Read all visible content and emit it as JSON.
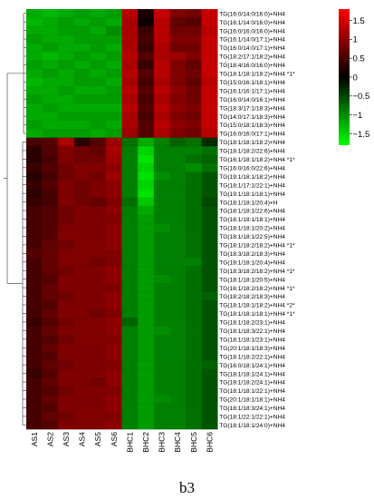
{
  "caption": "b3",
  "chart_data": {
    "type": "heatmap",
    "columns": [
      "AS1",
      "AS2",
      "AS3",
      "AS4",
      "AS5",
      "AS6",
      "BHC1",
      "BHC2",
      "BHC3",
      "BHC4",
      "BHC5",
      "BHC6"
    ],
    "rows": [
      "TG(16:0/14:0/16:0)+NH4",
      "TG(16:1/14:0/16:0)+NH4",
      "TG(16:0/16:0/16:0)+NH4",
      "TG(16:1/14:0/17:1)+NH4",
      "TG(16:0/14:0/17:1)+NH4",
      "TG(18:2/17:1/18:2)+NH4",
      "TG(18:4/16:0/16:0)+NH4",
      "TG(18:1/18:1/18:2)+NH4 *1*",
      "TG(15:0/16:1/18:1)+NH4",
      "TG(16:1/16:1/17:1)+NH4",
      "TG(16:0/14:0/16:1)+NH4",
      "TG(18:3/17:1/18:3)+NH4",
      "TG(14:0/17:1/18:3)+NH4",
      "TG(15:0/18:1/18:3)+NH4",
      "TG(16:0/16:0/17:1)+NH4",
      "TG(18:1/18:1/18:2)+NH4",
      "TG(18:1/18:2/22:6)+NH4",
      "TG(16:1/18:1/18:2)+NH4 *1*",
      "TG(16:0/16:0/22:6)+NH4",
      "TG(19:1/18:1/18:2)+NH4",
      "TG(18:1/17:1/22:1)+NH4",
      "TG(19:1/18:1/18:1)+NH4",
      "TG(18:1/18:1/20:4)+H",
      "TG(18:1/18:1/22:6)+NH4",
      "TG(16:1/18:1/18:1)+NH4",
      "TG(18:1/18:1/20:2)+NH4",
      "TG(18:1/18:1/22:5)+NH4",
      "TG(18:1/18:2/18:2)+NH4 *1*",
      "TG(18:3/18:2/18:3)+NH4",
      "TG(18:1/18:1/20:4)+NH4",
      "TG(18:3/18:2/18:2)+NH4 *1*",
      "TG(18:1/18:1/20:5)+NH4",
      "TG(16:1/18:2/18:2)+NH4 *1*",
      "TG(18:2/18:2/18:3)+NH4",
      "TG(18:1/18:1/18:2)+NH4 *2*",
      "TG(18:1/18:1/18:1)+NH4 *1*",
      "TG(18:1/18:2/23:1)+NH4",
      "TG(18:1/18:3/22:1)+NH4",
      "TG(18:1/18:1/23:1)+NH4",
      "TG(20:1/18:1/18:3)+NH4",
      "TG(18:1/18:2/22:1)+NH4",
      "TG(16:0/18:1/24:1)+NH4",
      "TG(18:1/18:1/24:1)+NH4",
      "TG(18:1/18:2/24:1)+NH4",
      "TG(18:1/18:1/22:1)+NH4",
      "TG(20:1/18:1/18:1)+NH4",
      "TG(18:1/18:3/24:1)+NH4",
      "TG(18:1/22:1/22:1)+NH4",
      "TG(18:1/18:1/24:0)+NH4"
    ],
    "values": [
      [
        -1.2,
        -1.3,
        -1.2,
        -1.1,
        -1.2,
        -1.1,
        1.3,
        0.2,
        1.4,
        0.9,
        0.8,
        1.4
      ],
      [
        -1.3,
        -1.2,
        -1.1,
        -1.2,
        -1.1,
        -1.2,
        1.2,
        0.1,
        1.3,
        0.7,
        0.6,
        1.4
      ],
      [
        -1.2,
        -1.2,
        -1.1,
        -1.1,
        -1.2,
        -1.0,
        1.2,
        0.4,
        1.3,
        0.8,
        0.8,
        1.3
      ],
      [
        -1.1,
        -1.2,
        -1.2,
        -1.1,
        -1.1,
        -1.1,
        1.2,
        0.5,
        1.3,
        0.9,
        0.9,
        1.4
      ],
      [
        -1.2,
        -1.1,
        -1.2,
        -1.2,
        -1.1,
        -1.2,
        1.2,
        0.4,
        1.2,
        0.8,
        0.8,
        1.4
      ],
      [
        -1.2,
        -1.3,
        -1.2,
        -1.1,
        -1.2,
        -1.1,
        1.3,
        0.6,
        1.2,
        1.1,
        0.9,
        1.4
      ],
      [
        -1.1,
        -1.2,
        -1.1,
        -1.2,
        -1.1,
        -1.2,
        1.2,
        0.4,
        1.3,
        0.9,
        0.7,
        1.4
      ],
      [
        -1.2,
        -1.1,
        -1.2,
        -1.1,
        -1.2,
        -1.1,
        1.3,
        0.6,
        1.3,
        0.9,
        0.8,
        1.4
      ],
      [
        -1.3,
        -1.2,
        -1.2,
        -1.1,
        -1.1,
        -1.2,
        1.2,
        0.5,
        1.2,
        0.9,
        0.7,
        1.3
      ],
      [
        -1.2,
        -1.2,
        -1.1,
        -1.2,
        -1.2,
        -1.1,
        1.3,
        0.6,
        1.3,
        1.0,
        0.8,
        1.4
      ],
      [
        -1.1,
        -1.2,
        -1.2,
        -1.1,
        -1.1,
        -1.1,
        1.2,
        0.5,
        1.2,
        0.9,
        0.8,
        1.4
      ],
      [
        -1.2,
        -1.1,
        -1.2,
        -1.2,
        -1.2,
        -1.2,
        1.3,
        0.6,
        1.3,
        1.0,
        0.9,
        1.4
      ],
      [
        -1.2,
        -1.2,
        -1.1,
        -1.1,
        -1.1,
        -1.1,
        1.2,
        0.5,
        1.2,
        0.9,
        0.8,
        1.4
      ],
      [
        -1.1,
        -1.2,
        -1.2,
        -1.2,
        -1.1,
        -1.2,
        1.2,
        0.6,
        1.3,
        1.0,
        0.9,
        1.4
      ],
      [
        -1.2,
        -1.1,
        -1.1,
        -1.1,
        -1.2,
        -1.1,
        1.1,
        0.6,
        1.2,
        0.9,
        0.8,
        1.3
      ],
      [
        0.5,
        0.6,
        1.2,
        0.3,
        0.6,
        1.1,
        -0.8,
        -1.2,
        -0.9,
        -0.7,
        -0.8,
        -0.3
      ],
      [
        0.3,
        0.6,
        0.9,
        0.8,
        0.7,
        1.2,
        -0.9,
        -1.5,
        -0.9,
        -0.9,
        -0.9,
        -0.8
      ],
      [
        0.3,
        0.5,
        0.9,
        0.8,
        0.8,
        1.1,
        -0.9,
        -1.6,
        -0.9,
        -0.9,
        -0.8,
        -0.7
      ],
      [
        0.4,
        0.6,
        0.8,
        0.9,
        0.9,
        1.0,
        -0.9,
        -1.5,
        -0.9,
        -0.9,
        -1.0,
        -0.8
      ],
      [
        0.3,
        0.5,
        0.8,
        0.9,
        0.8,
        1.1,
        -0.9,
        -1.6,
        -1.0,
        -0.9,
        -0.8,
        -0.6
      ],
      [
        0.4,
        0.6,
        0.9,
        0.8,
        0.9,
        1.0,
        -0.9,
        -1.5,
        -0.9,
        -0.9,
        -0.8,
        -0.6
      ],
      [
        0.3,
        0.5,
        0.9,
        0.8,
        0.9,
        1.0,
        -0.9,
        -1.6,
        -0.9,
        -0.9,
        -0.8,
        -0.6
      ],
      [
        0.4,
        0.5,
        0.9,
        0.8,
        0.7,
        0.9,
        -0.8,
        -1.4,
        -0.9,
        -0.9,
        -0.8,
        -0.5
      ],
      [
        0.5,
        0.6,
        0.8,
        0.9,
        0.9,
        1.0,
        -0.9,
        -1.2,
        -0.9,
        -0.9,
        -0.8,
        -0.6
      ],
      [
        0.5,
        0.6,
        0.8,
        0.9,
        0.9,
        0.9,
        -0.9,
        -1.1,
        -0.9,
        -0.9,
        -0.8,
        -0.6
      ],
      [
        0.5,
        0.6,
        0.9,
        0.9,
        0.9,
        1.0,
        -0.9,
        -1.1,
        -1.0,
        -0.9,
        -0.8,
        -0.6
      ],
      [
        0.5,
        0.6,
        0.9,
        0.9,
        0.9,
        1.0,
        -0.9,
        -1.1,
        -0.9,
        -0.9,
        -0.8,
        -0.6
      ],
      [
        0.5,
        0.7,
        0.8,
        0.9,
        0.9,
        1.0,
        -0.9,
        -1.1,
        -0.9,
        -0.9,
        -0.8,
        -0.6
      ],
      [
        0.6,
        0.7,
        0.9,
        0.9,
        0.9,
        0.9,
        -0.9,
        -1.1,
        -0.9,
        -0.9,
        -0.8,
        -0.6
      ],
      [
        0.5,
        0.7,
        0.9,
        0.9,
        0.8,
        0.9,
        -0.9,
        -1.1,
        -0.9,
        -0.9,
        -0.9,
        -0.6
      ],
      [
        0.5,
        0.7,
        0.8,
        0.9,
        0.9,
        1.0,
        -0.9,
        -1.1,
        -0.9,
        -0.9,
        -0.8,
        -0.6
      ],
      [
        0.5,
        0.6,
        0.9,
        0.9,
        0.9,
        1.0,
        -0.9,
        -1.1,
        -1.0,
        -0.9,
        -0.8,
        -0.6
      ],
      [
        0.5,
        0.7,
        0.9,
        0.9,
        0.9,
        0.9,
        -0.9,
        -1.1,
        -0.9,
        -0.9,
        -0.8,
        -0.6
      ],
      [
        0.5,
        0.7,
        0.8,
        0.9,
        0.9,
        1.0,
        -0.9,
        -1.1,
        -0.9,
        -0.9,
        -0.8,
        -0.7
      ],
      [
        0.5,
        0.6,
        0.9,
        0.9,
        0.9,
        1.0,
        -0.9,
        -1.1,
        -0.9,
        -0.9,
        -0.8,
        -0.6
      ],
      [
        0.5,
        0.7,
        0.9,
        0.9,
        0.8,
        0.9,
        -0.9,
        -1.1,
        -0.9,
        -0.9,
        -0.8,
        -0.6
      ],
      [
        0.4,
        0.6,
        0.8,
        0.9,
        0.9,
        1.0,
        -0.7,
        -1.1,
        -0.9,
        -0.9,
        -0.8,
        -0.6
      ],
      [
        0.5,
        0.7,
        0.9,
        0.9,
        0.9,
        1.0,
        -0.9,
        -1.1,
        -1.0,
        -0.9,
        -0.8,
        -0.6
      ],
      [
        0.5,
        0.6,
        0.8,
        0.9,
        0.9,
        0.9,
        -0.9,
        -1.1,
        -0.9,
        -0.9,
        -0.8,
        -0.6
      ],
      [
        0.5,
        0.7,
        0.9,
        0.9,
        0.9,
        1.0,
        -0.9,
        -1.1,
        -0.9,
        -0.9,
        -0.8,
        -0.6
      ],
      [
        0.5,
        0.6,
        0.9,
        0.9,
        0.9,
        1.0,
        -0.9,
        -1.1,
        -0.9,
        -0.9,
        -0.8,
        -0.6
      ],
      [
        0.5,
        0.7,
        0.8,
        0.9,
        0.9,
        0.9,
        -0.9,
        -1.1,
        -0.9,
        -0.9,
        -0.8,
        -0.7
      ],
      [
        0.4,
        0.6,
        0.9,
        0.9,
        0.9,
        1.0,
        -0.9,
        -1.1,
        -0.9,
        -0.9,
        -0.8,
        -0.6
      ],
      [
        0.5,
        0.7,
        0.9,
        0.9,
        0.8,
        1.0,
        -0.9,
        -1.1,
        -0.9,
        -0.9,
        -0.8,
        -0.6
      ],
      [
        0.5,
        0.6,
        0.8,
        0.9,
        0.9,
        0.9,
        -0.9,
        -1.1,
        -0.9,
        -0.9,
        -0.8,
        -0.6
      ],
      [
        0.5,
        0.7,
        0.9,
        0.9,
        0.9,
        1.0,
        -0.9,
        -1.1,
        -1.0,
        -0.9,
        -0.8,
        -0.6
      ],
      [
        0.5,
        0.6,
        0.9,
        0.9,
        0.9,
        1.0,
        -0.9,
        -1.1,
        -0.9,
        -0.9,
        -0.8,
        -0.6
      ],
      [
        0.5,
        0.7,
        0.8,
        0.9,
        0.9,
        0.9,
        -0.9,
        -1.1,
        -0.9,
        -0.9,
        -0.8,
        -0.6
      ],
      [
        0.5,
        0.6,
        0.9,
        0.9,
        0.9,
        1.0,
        -0.9,
        -1.1,
        -0.9,
        -0.9,
        -0.8,
        -0.6
      ]
    ],
    "dendrogram": {
      "top_cluster_rows": [
        0,
        14
      ],
      "bottom_cluster_rows": [
        15,
        48
      ]
    },
    "color_scale": {
      "min": -1.8,
      "max": 1.8,
      "low_color": "#00ff00",
      "mid_color": "#000000",
      "high_color": "#ff0000",
      "ticks": [
        1.5,
        1,
        0.5,
        0,
        -0.5,
        -1,
        -1.5
      ],
      "tick_labels": [
        "1.5",
        "1",
        "0.5",
        "0",
        "−0.5",
        "−1",
        "−1.5"
      ]
    }
  }
}
